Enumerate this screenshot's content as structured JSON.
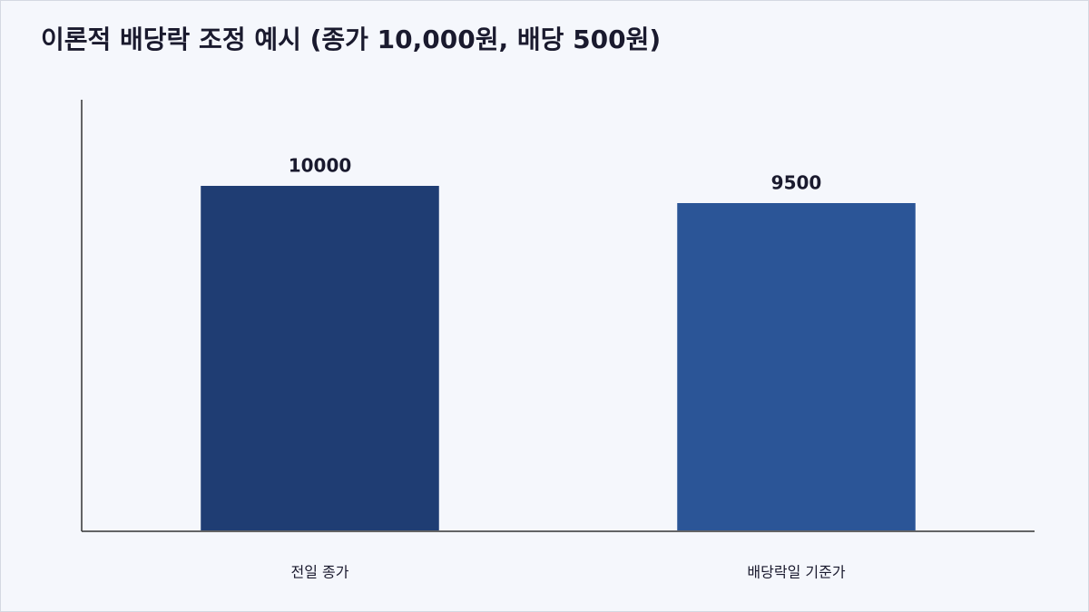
{
  "chart_data": {
    "type": "bar",
    "title": "이론적 배당락 조정 예시 (종가 10,000원, 배당 500원)",
    "categories": [
      "전일 종가",
      "배당락일 기준가"
    ],
    "values": [
      10000,
      9500
    ],
    "colors": [
      "#1f3d73",
      "#2b5597"
    ],
    "ylim": [
      0,
      12500
    ]
  }
}
